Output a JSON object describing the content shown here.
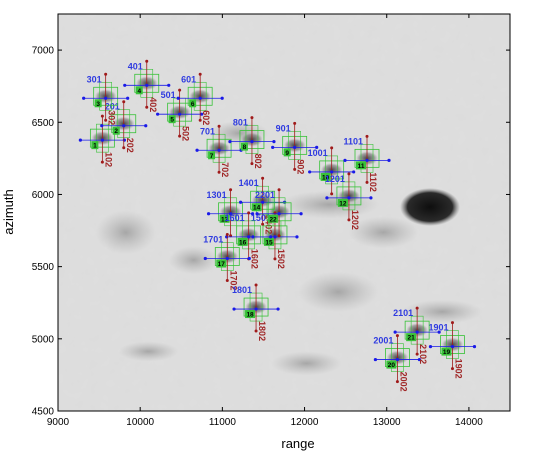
{
  "chart_data": {
    "type": "scatter",
    "xlabel": "range",
    "ylabel": "azimuth",
    "xlim": [
      9000,
      14500
    ],
    "ylim": [
      4500,
      7250
    ],
    "xticks": [
      9000,
      10000,
      11000,
      12000,
      13000,
      14000
    ],
    "yticks": [
      4500,
      5000,
      5500,
      6000,
      6500,
      7000
    ],
    "colors": {
      "blue_label": "#2f3be0",
      "red_label": "#a02828",
      "green_box": "#38c238",
      "point": "#1a1ae8",
      "stem": "#a01a1a"
    },
    "targets": [
      {
        "id": "1",
        "x": 9540,
        "y": 6390,
        "blue": "",
        "red": "102"
      },
      {
        "id": "2",
        "x": 9800,
        "y": 6490,
        "blue": "201",
        "red": "202"
      },
      {
        "id": "3",
        "x": 9580,
        "y": 6680,
        "blue": "301",
        "red": "302"
      },
      {
        "id": "4",
        "x": 10080,
        "y": 6770,
        "blue": "401",
        "red": "402"
      },
      {
        "id": "5",
        "x": 10480,
        "y": 6570,
        "blue": "501",
        "red": "502"
      },
      {
        "id": "6",
        "x": 10730,
        "y": 6680,
        "blue": "601",
        "red": "602"
      },
      {
        "id": "7",
        "x": 10960,
        "y": 6320,
        "blue": "701",
        "red": "702"
      },
      {
        "id": "8",
        "x": 11360,
        "y": 6380,
        "blue": "801",
        "red": "802"
      },
      {
        "id": "9",
        "x": 11880,
        "y": 6340,
        "blue": "901",
        "red": "902"
      },
      {
        "id": "10",
        "x": 12330,
        "y": 6170,
        "blue": "1001",
        "red": ""
      },
      {
        "id": "11",
        "x": 12760,
        "y": 6250,
        "blue": "1101",
        "red": "1102"
      },
      {
        "id": "12",
        "x": 12540,
        "y": 5990,
        "blue": "1201",
        "red": "1202"
      },
      {
        "id": "13",
        "x": 11100,
        "y": 5880,
        "blue": "1301",
        "red": ""
      },
      {
        "id": "14",
        "x": 11490,
        "y": 5960,
        "blue": "1401",
        "red": "1402"
      },
      {
        "id": "15",
        "x": 11640,
        "y": 5720,
        "blue": "1501",
        "red": "1502"
      },
      {
        "id": "16",
        "x": 11320,
        "y": 5720,
        "blue": "1601",
        "red": "1602"
      },
      {
        "id": "17",
        "x": 11060,
        "y": 5570,
        "blue": "1701",
        "red": "1702"
      },
      {
        "id": "18",
        "x": 11410,
        "y": 5220,
        "blue": "1801",
        "red": "1802"
      },
      {
        "id": "19",
        "x": 13800,
        "y": 4960,
        "blue": "1901",
        "red": "1902"
      },
      {
        "id": "20",
        "x": 13130,
        "y": 4870,
        "blue": "2001",
        "red": "2002"
      },
      {
        "id": "21",
        "x": 13370,
        "y": 5060,
        "blue": "2101",
        "red": "2102"
      },
      {
        "id": "22",
        "x": 11690,
        "y": 5880,
        "blue": "2201",
        "red": ""
      }
    ]
  }
}
